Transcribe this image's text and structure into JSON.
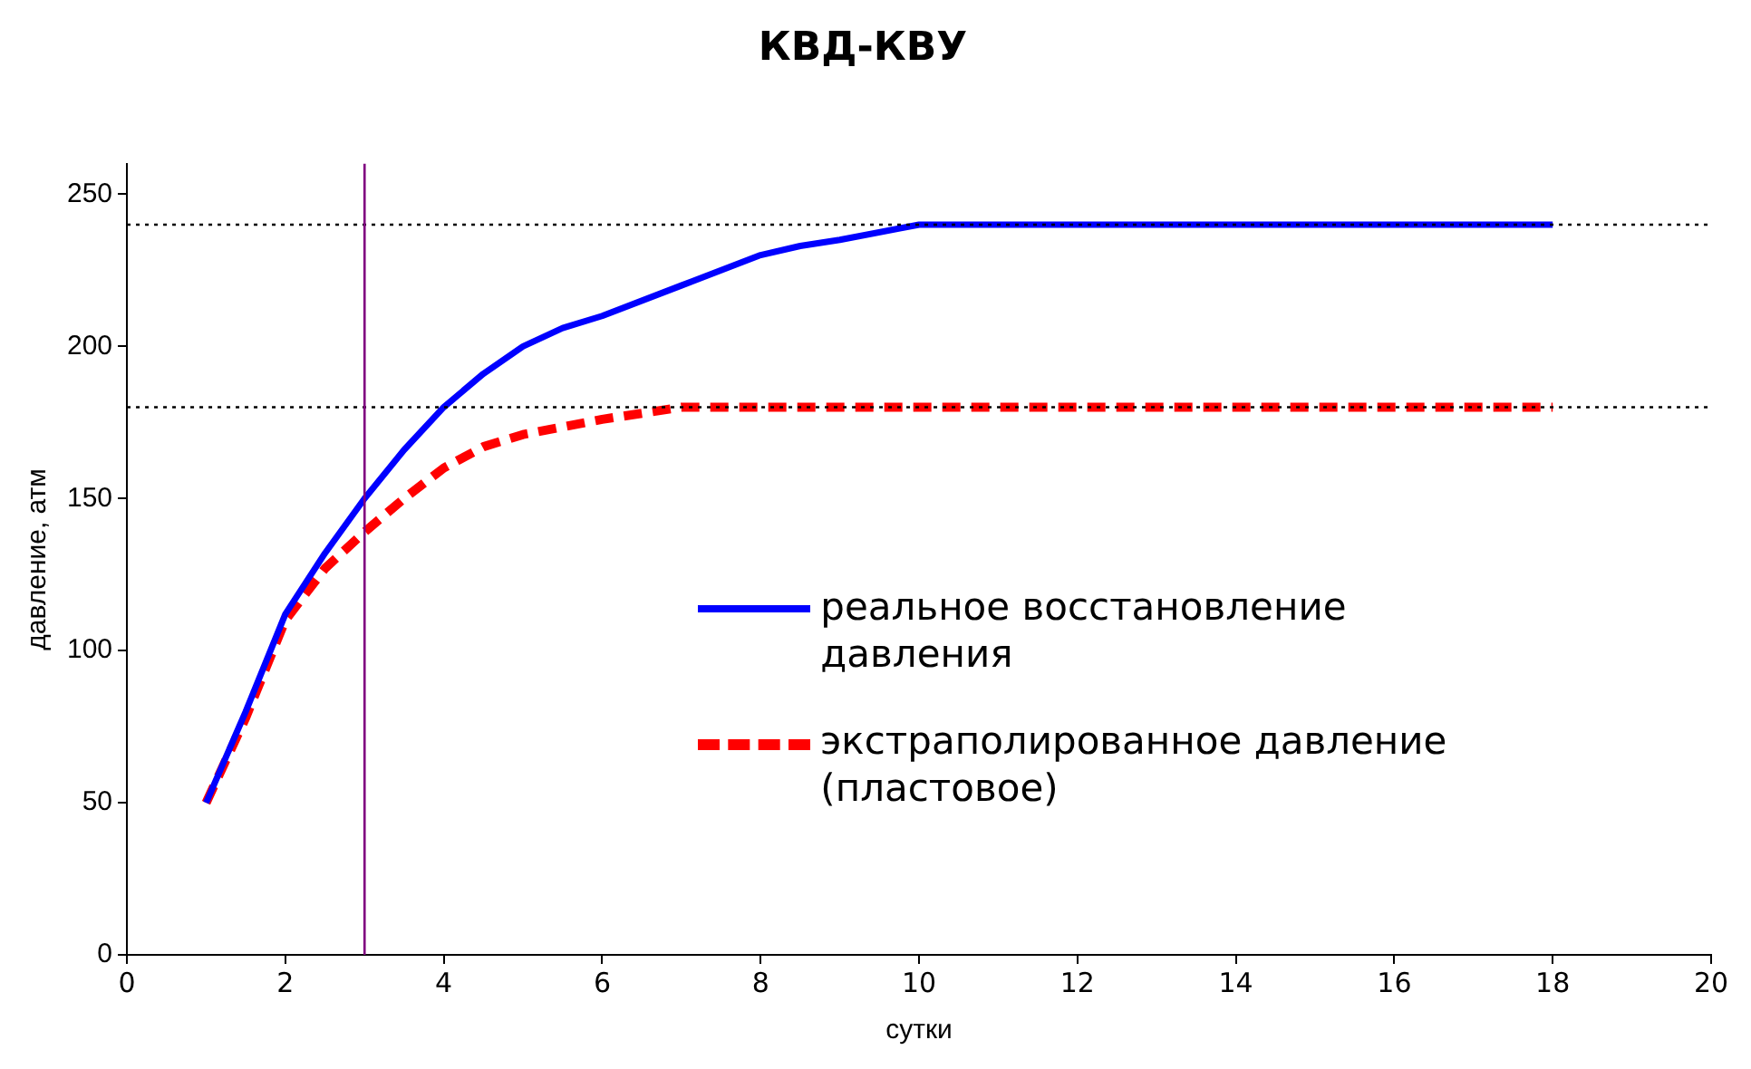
{
  "chart_data": {
    "type": "line",
    "title": "КВД-КВУ",
    "xlabel": "сутки",
    "ylabel": "давление, атм",
    "xlim": [
      0,
      20
    ],
    "xticks": [
      0,
      2,
      4,
      6,
      8,
      10,
      12,
      14,
      16,
      18,
      20
    ],
    "ylim": [
      0,
      260
    ],
    "yticks": [
      0,
      50,
      100,
      150,
      200,
      250
    ],
    "grid": false,
    "legend": "right",
    "marker": "none",
    "series": [
      {
        "name": "реальное восстановление давления",
        "color": "#0000ff",
        "line_style": "solid",
        "x": [
          1,
          1.5,
          2,
          2.5,
          3,
          3.5,
          4,
          4.5,
          5,
          5.5,
          6,
          7,
          8,
          8.5,
          9,
          10,
          18
        ],
        "values": [
          50,
          80,
          112,
          132,
          150,
          166,
          180,
          191,
          200,
          206,
          210,
          220,
          230,
          233,
          235,
          240,
          240
        ]
      },
      {
        "name": "экстраполированное  давление (пластовое)",
        "color": "#ff0000",
        "line_style": "dashed",
        "x": [
          1,
          1.5,
          2,
          2.5,
          3,
          3.5,
          4,
          4.5,
          5,
          6,
          7,
          18
        ],
        "values": [
          50,
          78,
          110,
          127,
          139,
          150,
          160,
          167,
          171,
          176,
          180,
          180
        ]
      }
    ],
    "ref_lines": [
      {
        "axis": "y",
        "value": 240,
        "color": "#000000",
        "line_style": "dotted"
      },
      {
        "axis": "y",
        "value": 180,
        "color": "#000000",
        "line_style": "dotted"
      },
      {
        "axis": "x",
        "value": 3,
        "color": "#800080",
        "line_style": "solid"
      }
    ]
  }
}
